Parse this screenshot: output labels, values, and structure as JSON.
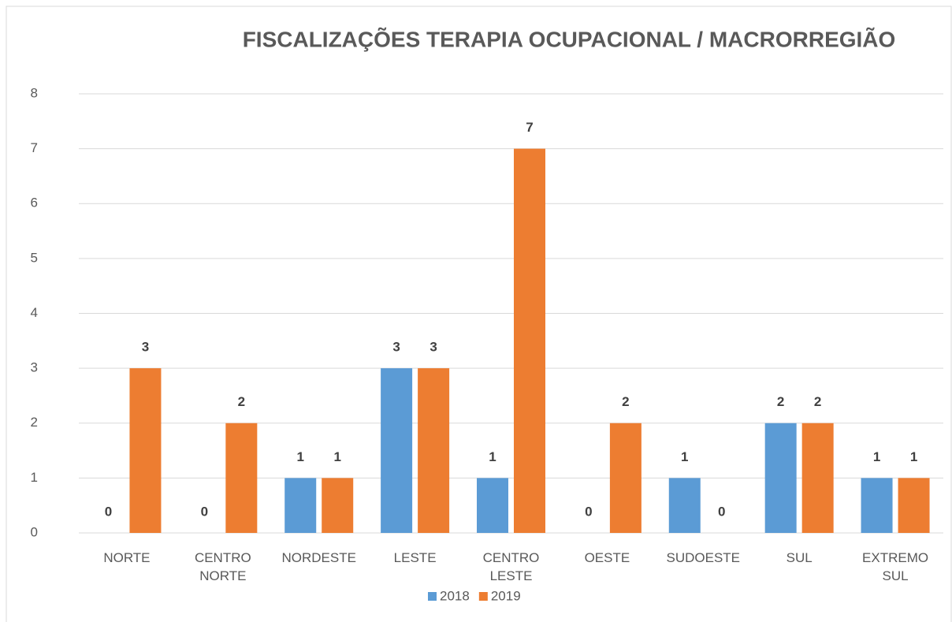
{
  "chart_data": {
    "type": "bar",
    "title": "FISCALIZAÇÕES TERAPIA OCUPACIONAL / MACRORREGIÃO",
    "categories": [
      "NORTE",
      "CENTRO NORTE",
      "NORDESTE",
      "LESTE",
      "CENTRO LESTE",
      "OESTE",
      "SUDOESTE",
      "SUL",
      "EXTREMO SUL"
    ],
    "series": [
      {
        "name": "2018",
        "color": "#5b9bd5",
        "values": [
          0,
          0,
          1,
          3,
          1,
          0,
          1,
          2,
          1
        ]
      },
      {
        "name": "2019",
        "color": "#ed7d31",
        "values": [
          3,
          2,
          1,
          3,
          7,
          2,
          0,
          2,
          1
        ]
      }
    ],
    "ylim": [
      0,
      8
    ],
    "yticks": [
      0,
      1,
      2,
      3,
      4,
      5,
      6,
      7,
      8
    ],
    "grid": true,
    "legend": "bottom"
  }
}
